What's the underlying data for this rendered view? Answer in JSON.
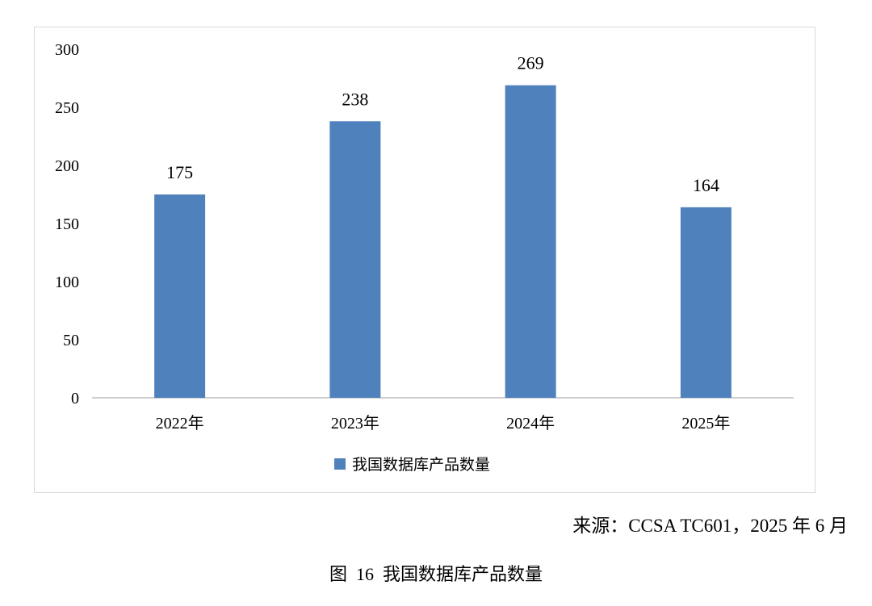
{
  "chart_data": {
    "type": "bar",
    "categories": [
      "2022年",
      "2023年",
      "2024年",
      "2025年"
    ],
    "series": [
      {
        "name": "我国数据库产品数量",
        "values": [
          175,
          238,
          269,
          164
        ],
        "color": "#4f81bd"
      }
    ],
    "ylim": [
      0,
      300
    ],
    "yticks": [
      0,
      50,
      100,
      150,
      200,
      250,
      300
    ],
    "grid": false,
    "legend": "bottom-center",
    "data_labels": true,
    "title": "",
    "xlabel": "",
    "ylabel": ""
  },
  "source_note": "来源：CCSA TC601，2025 年 6 月",
  "figure_caption": "图  16  我国数据库产品数量"
}
